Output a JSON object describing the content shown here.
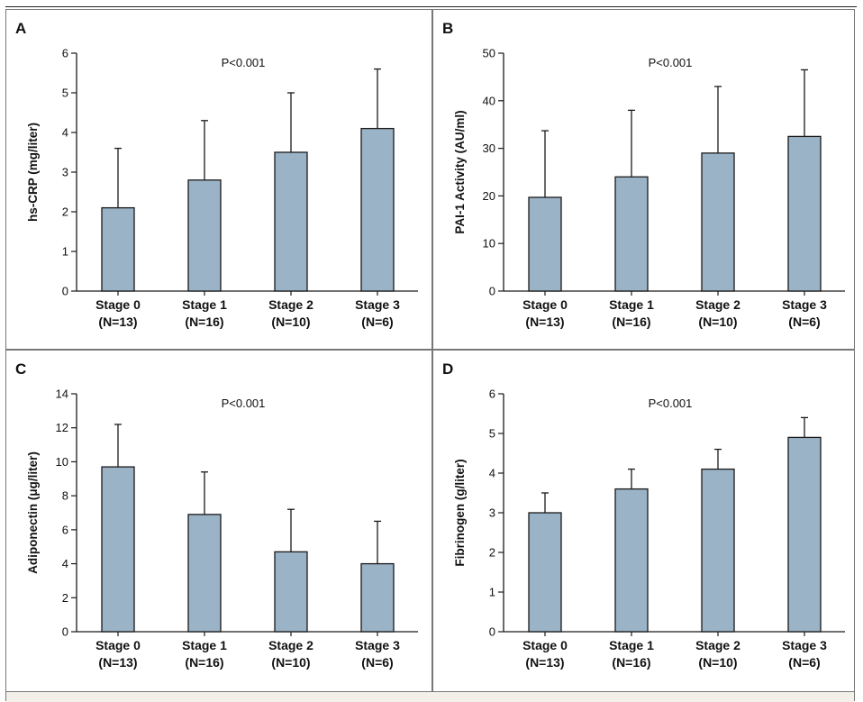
{
  "chart_data": [
    {
      "type": "bar",
      "panel_label": "A",
      "annotation": "P<0.001",
      "ylabel": "hs-CRP (mg/liter)",
      "ylim": [
        0,
        6
      ],
      "yticks": [
        0,
        1,
        2,
        3,
        4,
        5,
        6
      ],
      "categories": [
        "Stage 0",
        "Stage 1",
        "Stage 2",
        "Stage 3"
      ],
      "sublabels": [
        "(N=13)",
        "(N=16)",
        "(N=10)",
        "(N=6)"
      ],
      "values": [
        2.1,
        2.8,
        3.5,
        4.1
      ],
      "error_upper": [
        3.6,
        4.3,
        5.0,
        5.6
      ]
    },
    {
      "type": "bar",
      "panel_label": "B",
      "annotation": "P<0.001",
      "ylabel": "PAI-1 Activity (AU/ml)",
      "ylim": [
        0,
        50
      ],
      "yticks": [
        0,
        10,
        20,
        30,
        40,
        50
      ],
      "categories": [
        "Stage 0",
        "Stage 1",
        "Stage 2",
        "Stage 3"
      ],
      "sublabels": [
        "(N=13)",
        "(N=16)",
        "(N=10)",
        "(N=6)"
      ],
      "values": [
        19.7,
        24,
        29,
        32.5
      ],
      "error_upper": [
        33.7,
        38,
        43,
        46.5
      ]
    },
    {
      "type": "bar",
      "panel_label": "C",
      "annotation": "P<0.001",
      "ylabel": "Adiponectin (μg/liter)",
      "ylim": [
        0,
        14
      ],
      "yticks": [
        0,
        2,
        4,
        6,
        8,
        10,
        12,
        14
      ],
      "categories": [
        "Stage 0",
        "Stage 1",
        "Stage 2",
        "Stage 3"
      ],
      "sublabels": [
        "(N=13)",
        "(N=16)",
        "(N=10)",
        "(N=6)"
      ],
      "values": [
        9.7,
        6.9,
        4.7,
        4.0
      ],
      "error_upper": [
        12.2,
        9.4,
        7.2,
        6.5
      ]
    },
    {
      "type": "bar",
      "panel_label": "D",
      "annotation": "P<0.001",
      "ylabel": "Fibrinogen (g/liter)",
      "ylim": [
        0,
        6
      ],
      "yticks": [
        0,
        1,
        2,
        3,
        4,
        5,
        6
      ],
      "categories": [
        "Stage 0",
        "Stage 1",
        "Stage 2",
        "Stage 3"
      ],
      "sublabels": [
        "(N=13)",
        "(N=16)",
        "(N=10)",
        "(N=6)"
      ],
      "values": [
        3.0,
        3.6,
        4.1,
        4.9
      ],
      "error_upper": [
        3.5,
        4.1,
        4.6,
        5.4
      ]
    }
  ],
  "colors": {
    "bar_fill": "#9bb3c6",
    "bar_stroke": "#1a1a1a",
    "axis": "#1a1a1a",
    "text": "#111111"
  }
}
